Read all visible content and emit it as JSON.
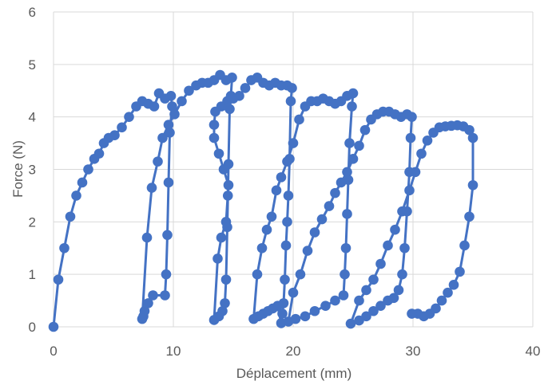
{
  "chart_data": {
    "type": "scatter",
    "title": "",
    "xlabel": "Déplacement (mm)",
    "ylabel": "Force (N)",
    "xlim": [
      0,
      40
    ],
    "ylim": [
      0,
      6
    ],
    "xticks": [
      0,
      10,
      20,
      30,
      40
    ],
    "yticks": [
      0,
      1,
      2,
      3,
      4,
      5,
      6
    ],
    "grid": true,
    "legend": "none",
    "color": "#4472C4",
    "series": [
      {
        "values": [
          [
            0,
            0
          ],
          [
            0.4,
            0.9
          ],
          [
            0.9,
            1.5
          ],
          [
            1.4,
            2.1
          ],
          [
            1.9,
            2.5
          ],
          [
            2.4,
            2.75
          ],
          [
            2.9,
            3.0
          ],
          [
            3.4,
            3.2
          ],
          [
            3.8,
            3.3
          ],
          [
            4.2,
            3.5
          ],
          [
            4.6,
            3.6
          ],
          [
            5.1,
            3.65
          ],
          [
            5.7,
            3.8
          ],
          [
            6.3,
            4.0
          ],
          [
            6.9,
            4.2
          ],
          [
            7.4,
            4.3
          ],
          [
            7.9,
            4.25
          ],
          [
            8.4,
            4.2
          ],
          [
            8.8,
            4.45
          ],
          [
            9.3,
            4.35
          ],
          [
            9.8,
            4.4
          ],
          [
            9.9,
            4.2
          ],
          [
            9.7,
            3.7
          ],
          [
            9.6,
            2.75
          ],
          [
            9.5,
            1.75
          ],
          [
            9.4,
            1.0
          ],
          [
            9.3,
            0.6
          ],
          [
            8.3,
            0.6
          ],
          [
            7.9,
            0.45
          ],
          [
            7.6,
            0.3
          ],
          [
            7.5,
            0.2
          ],
          [
            7.4,
            0.15
          ],
          [
            7.8,
            1.7
          ],
          [
            8.2,
            2.65
          ],
          [
            8.7,
            3.15
          ],
          [
            9.1,
            3.6
          ],
          [
            9.6,
            3.85
          ],
          [
            10.1,
            4.05
          ],
          [
            10.7,
            4.3
          ],
          [
            11.3,
            4.5
          ],
          [
            11.9,
            4.6
          ],
          [
            12.4,
            4.65
          ],
          [
            12.9,
            4.65
          ],
          [
            13.4,
            4.7
          ],
          [
            13.9,
            4.8
          ],
          [
            14.4,
            4.7
          ],
          [
            14.9,
            4.75
          ],
          [
            14.8,
            4.4
          ],
          [
            14.7,
            4.15
          ],
          [
            14.6,
            3.1
          ],
          [
            14.55,
            2.5
          ],
          [
            14.5,
            1.9
          ],
          [
            14.4,
            0.9
          ],
          [
            14.3,
            0.45
          ],
          [
            14.1,
            0.3
          ],
          [
            13.8,
            0.2
          ],
          [
            13.4,
            0.13
          ],
          [
            13.7,
            1.3
          ],
          [
            14.0,
            1.7
          ],
          [
            14.4,
            2.0
          ],
          [
            14.6,
            2.7
          ],
          [
            14.2,
            3.0
          ],
          [
            13.8,
            3.3
          ],
          [
            13.4,
            3.6
          ],
          [
            13.4,
            3.85
          ],
          [
            13.5,
            4.1
          ],
          [
            14.0,
            4.2
          ],
          [
            14.5,
            4.3
          ],
          [
            15.0,
            4.35
          ],
          [
            15.5,
            4.4
          ],
          [
            16.0,
            4.55
          ],
          [
            16.5,
            4.7
          ],
          [
            17.0,
            4.75
          ],
          [
            17.5,
            4.65
          ],
          [
            18.0,
            4.6
          ],
          [
            18.5,
            4.65
          ],
          [
            19.0,
            4.6
          ],
          [
            19.5,
            4.6
          ],
          [
            19.9,
            4.55
          ],
          [
            19.8,
            4.3
          ],
          [
            19.7,
            3.2
          ],
          [
            19.6,
            2.5
          ],
          [
            19.5,
            2.0
          ],
          [
            19.4,
            1.55
          ],
          [
            19.3,
            0.9
          ],
          [
            19.2,
            0.45
          ],
          [
            19.1,
            0.25
          ],
          [
            19.0,
            0.07
          ],
          [
            18.7,
            0.4
          ],
          [
            18.3,
            0.35
          ],
          [
            17.9,
            0.3
          ],
          [
            17.5,
            0.25
          ],
          [
            17.1,
            0.2
          ],
          [
            16.7,
            0.15
          ],
          [
            17.0,
            1.0
          ],
          [
            17.4,
            1.5
          ],
          [
            17.8,
            1.85
          ],
          [
            18.2,
            2.1
          ],
          [
            18.6,
            2.6
          ],
          [
            19.0,
            2.85
          ],
          [
            19.5,
            3.15
          ],
          [
            20.0,
            3.5
          ],
          [
            20.5,
            3.95
          ],
          [
            21.0,
            4.2
          ],
          [
            21.5,
            4.3
          ],
          [
            22.0,
            4.3
          ],
          [
            22.5,
            4.35
          ],
          [
            23.0,
            4.3
          ],
          [
            23.5,
            4.25
          ],
          [
            24.0,
            4.3
          ],
          [
            24.5,
            4.4
          ],
          [
            25.0,
            4.45
          ],
          [
            24.9,
            4.2
          ],
          [
            24.7,
            3.5
          ],
          [
            24.6,
            2.8
          ],
          [
            24.5,
            2.15
          ],
          [
            24.4,
            1.5
          ],
          [
            24.3,
            1.0
          ],
          [
            24.2,
            0.6
          ],
          [
            23.5,
            0.5
          ],
          [
            22.7,
            0.4
          ],
          [
            21.8,
            0.3
          ],
          [
            21.0,
            0.2
          ],
          [
            20.2,
            0.15
          ],
          [
            19.6,
            0.1
          ],
          [
            20.0,
            0.65
          ],
          [
            20.6,
            1.0
          ],
          [
            21.2,
            1.45
          ],
          [
            21.8,
            1.8
          ],
          [
            22.4,
            2.05
          ],
          [
            23.0,
            2.3
          ],
          [
            23.5,
            2.55
          ],
          [
            24.0,
            2.75
          ],
          [
            24.5,
            2.95
          ],
          [
            25.0,
            3.2
          ],
          [
            25.5,
            3.45
          ],
          [
            26.0,
            3.75
          ],
          [
            26.5,
            3.95
          ],
          [
            27.0,
            4.05
          ],
          [
            27.5,
            4.1
          ],
          [
            28.0,
            4.1
          ],
          [
            28.5,
            4.05
          ],
          [
            29.0,
            4.0
          ],
          [
            29.5,
            4.05
          ],
          [
            29.9,
            4.0
          ],
          [
            29.8,
            3.6
          ],
          [
            29.7,
            2.95
          ],
          [
            29.5,
            2.2
          ],
          [
            29.3,
            1.5
          ],
          [
            29.1,
            1.0
          ],
          [
            28.8,
            0.7
          ],
          [
            28.4,
            0.55
          ],
          [
            27.9,
            0.5
          ],
          [
            27.3,
            0.4
          ],
          [
            26.7,
            0.3
          ],
          [
            26.1,
            0.2
          ],
          [
            25.5,
            0.12
          ],
          [
            24.8,
            0.06
          ],
          [
            25.5,
            0.5
          ],
          [
            26.1,
            0.7
          ],
          [
            26.7,
            0.9
          ],
          [
            27.3,
            1.2
          ],
          [
            27.9,
            1.55
          ],
          [
            28.5,
            1.85
          ],
          [
            29.1,
            2.2
          ],
          [
            29.7,
            2.6
          ],
          [
            30.2,
            2.95
          ],
          [
            30.7,
            3.3
          ],
          [
            31.2,
            3.55
          ],
          [
            31.7,
            3.7
          ],
          [
            32.2,
            3.8
          ],
          [
            32.7,
            3.82
          ],
          [
            33.2,
            3.83
          ],
          [
            33.7,
            3.84
          ],
          [
            34.2,
            3.82
          ],
          [
            34.7,
            3.75
          ],
          [
            35.0,
            3.6
          ],
          [
            35.0,
            2.7
          ],
          [
            34.7,
            2.1
          ],
          [
            34.3,
            1.55
          ],
          [
            33.9,
            1.05
          ],
          [
            33.4,
            0.8
          ],
          [
            32.9,
            0.65
          ],
          [
            32.4,
            0.5
          ],
          [
            31.9,
            0.35
          ],
          [
            31.4,
            0.25
          ],
          [
            30.9,
            0.2
          ],
          [
            30.4,
            0.25
          ],
          [
            29.9,
            0.25
          ]
        ]
      }
    ]
  }
}
